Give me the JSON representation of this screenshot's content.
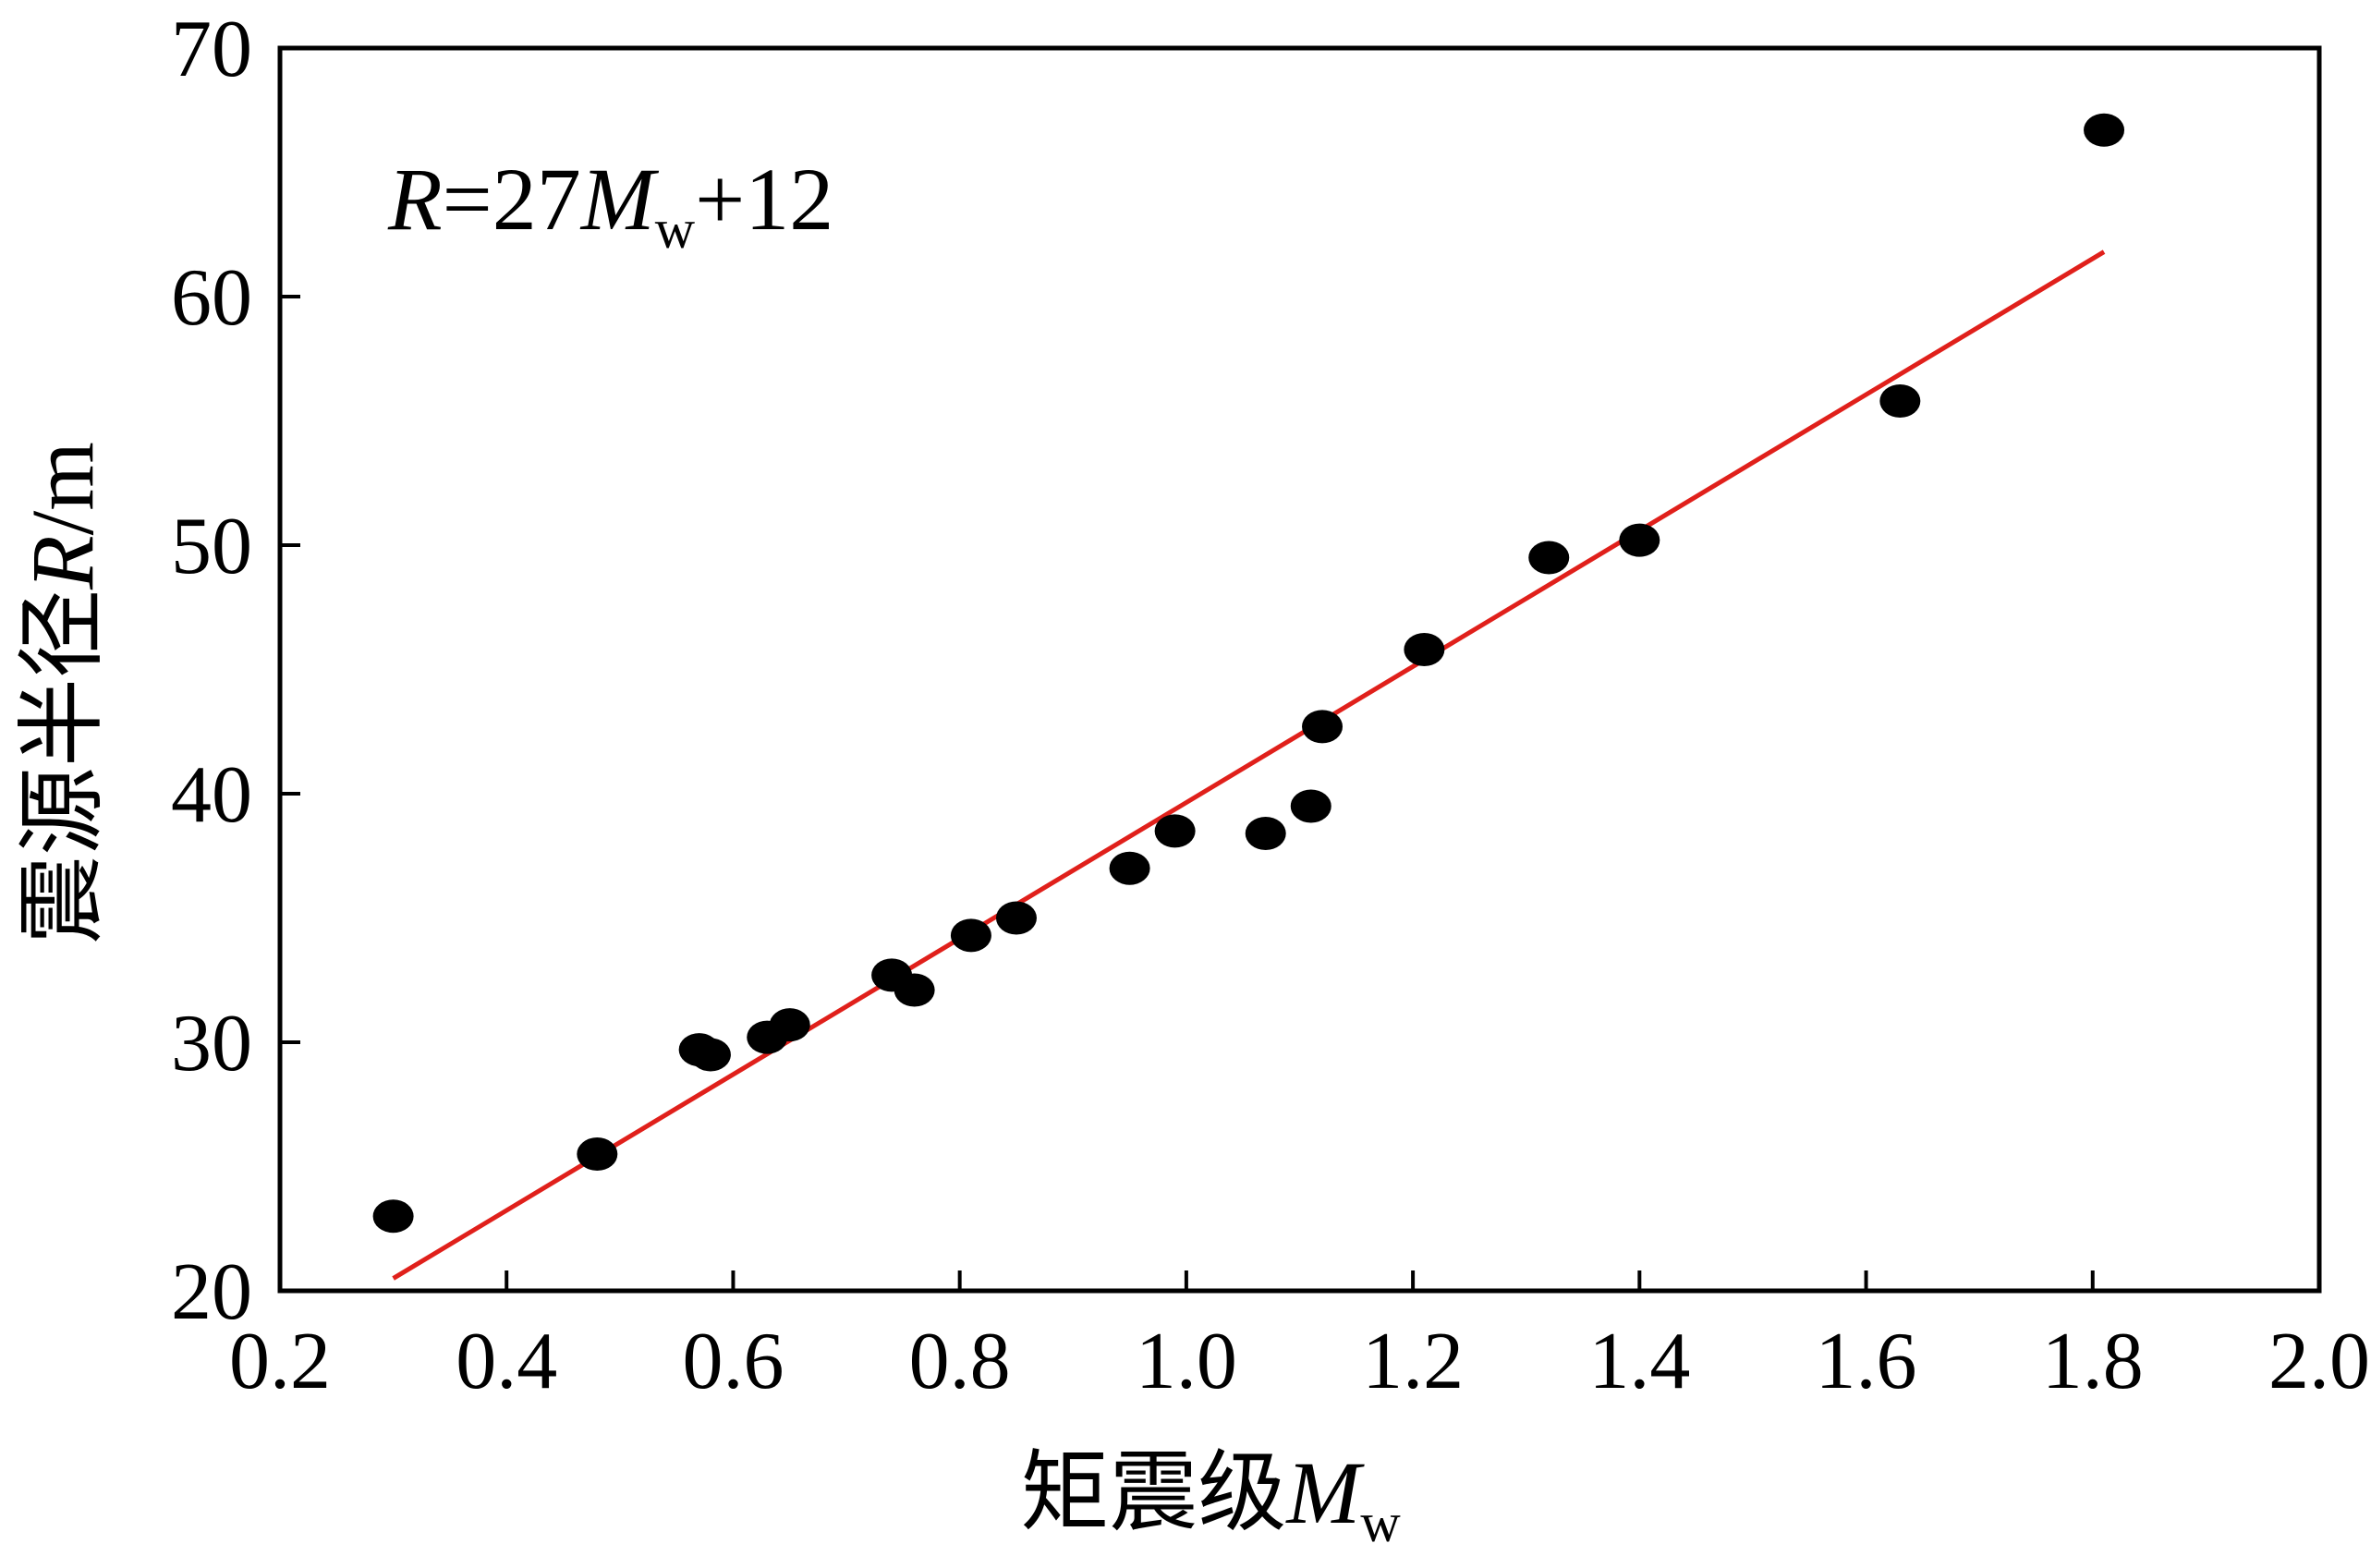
{
  "chart_data": {
    "type": "scatter",
    "xlabel": "矩震级",
    "xlabel_var": "M",
    "xlabel_sub": "w",
    "ylabel": "震源半径",
    "ylabel_var": "R",
    "ylabel_unit": "/m",
    "xlim": [
      0.2,
      2.0
    ],
    "ylim": [
      20,
      70
    ],
    "xticks": [
      "0.2",
      "0.4",
      "0.6",
      "0.8",
      "1.0",
      "1.2",
      "1.4",
      "1.6",
      "1.8",
      "2.0"
    ],
    "xtick_values": [
      0.2,
      0.4,
      0.6,
      0.8,
      1.0,
      1.2,
      1.4,
      1.6,
      1.8,
      2.0
    ],
    "yticks": [
      "20",
      "30",
      "40",
      "50",
      "60",
      "70"
    ],
    "ytick_values": [
      20,
      30,
      40,
      50,
      60,
      70
    ],
    "grid": false,
    "points": [
      {
        "x": 0.3,
        "y": 23.0
      },
      {
        "x": 0.48,
        "y": 25.5
      },
      {
        "x": 0.57,
        "y": 29.7
      },
      {
        "x": 0.58,
        "y": 29.5
      },
      {
        "x": 0.63,
        "y": 30.2
      },
      {
        "x": 0.65,
        "y": 30.7
      },
      {
        "x": 0.74,
        "y": 32.7
      },
      {
        "x": 0.76,
        "y": 32.1
      },
      {
        "x": 0.81,
        "y": 34.3
      },
      {
        "x": 0.85,
        "y": 35.0
      },
      {
        "x": 0.95,
        "y": 37.0
      },
      {
        "x": 0.99,
        "y": 38.5
      },
      {
        "x": 1.07,
        "y": 38.4
      },
      {
        "x": 1.11,
        "y": 39.5
      },
      {
        "x": 1.12,
        "y": 42.7
      },
      {
        "x": 1.21,
        "y": 45.8
      },
      {
        "x": 1.32,
        "y": 49.5
      },
      {
        "x": 1.4,
        "y": 50.2
      },
      {
        "x": 1.63,
        "y": 55.8
      },
      {
        "x": 1.81,
        "y": 66.7
      }
    ],
    "fit_line": {
      "x": [
        0.3,
        1.81
      ],
      "y": [
        20.5,
        61.8
      ],
      "color": "#e0201b"
    },
    "point_color": "#000000",
    "equation": {
      "lhs": "R",
      "rel": "=27",
      "var": "M",
      "sub": "w",
      "rest": "+12"
    }
  }
}
